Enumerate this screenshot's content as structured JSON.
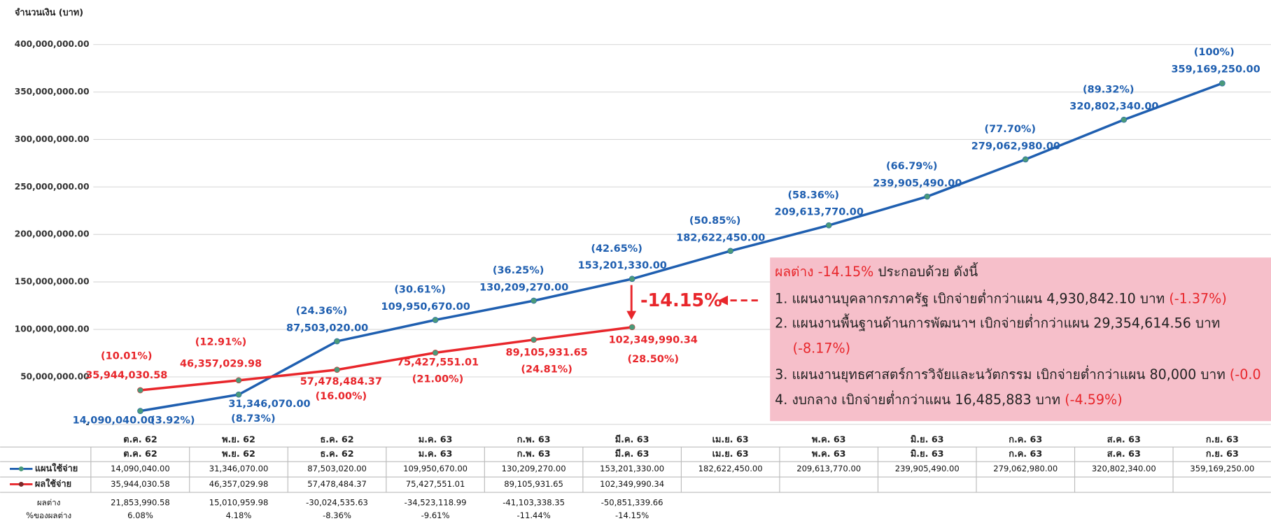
{
  "chart_data": {
    "type": "line",
    "y_axis_label": "จำนวนเงิน (บาท)",
    "categories": [
      "ต.ค. 62",
      "พ.ย. 62",
      "ธ.ค. 62",
      "ม.ค. 63",
      "ก.พ. 63",
      "มี.ค. 63",
      "เม.ย. 63",
      "พ.ค. 63",
      "มิ.ย. 63",
      "ก.ค. 63",
      "ส.ค. 63",
      "ก.ย. 63"
    ],
    "ylim": [
      0,
      400000000
    ],
    "yticks": [
      {
        "value": 0,
        "label": "-"
      },
      {
        "value": 50000000,
        "label": "50,000,000.00"
      },
      {
        "value": 100000000,
        "label": "100,000,000.00"
      },
      {
        "value": 150000000,
        "label": "150,000,000.00"
      },
      {
        "value": 200000000,
        "label": "200,000,000.00"
      },
      {
        "value": 250000000,
        "label": "250,000,000.00"
      },
      {
        "value": 300000000,
        "label": "300,000,000.00"
      },
      {
        "value": 350000000,
        "label": "350,000,000.00"
      },
      {
        "value": 400000000,
        "label": "400,000,000.00"
      }
    ],
    "grid": true,
    "series": [
      {
        "name": "แผนใช้จ่าย",
        "color": "#1f5fb0",
        "values": [
          14090040,
          31346070,
          87503020,
          109950670,
          130209270,
          153201330,
          182622450,
          209613770,
          239905490,
          279062980,
          320802340,
          359169250
        ],
        "value_labels": [
          "14,090,040.00",
          "31,346,070.00",
          "87,503,020.00",
          "109,950,670.00",
          "130,209,270.00",
          "153,201,330.00",
          "182,622,450.00",
          "209,613,770.00",
          "239,905,490.00",
          "279,062,980.00",
          "320,802,340.00",
          "359,169,250.00"
        ],
        "pct_labels": [
          "(3.92%)",
          "(8.73%)",
          "(24.36%)",
          "(30.61%)",
          "(36.25%)",
          "(42.65%)",
          "(50.85%)",
          "(58.36%)",
          "(66.79%)",
          "(77.70%)",
          "(89.32%)",
          "(100%)"
        ]
      },
      {
        "name": "ผลใช้จ่าย",
        "color": "#e8262b",
        "values": [
          35944030.58,
          46357029.98,
          57478484.37,
          75427551.01,
          89105931.65,
          102349990.34,
          null,
          null,
          null,
          null,
          null,
          null
        ],
        "value_labels": [
          "35,944,030.58",
          "46,357,029.98",
          "57,478,484.37",
          "75,427,551.01",
          "89,105,931.65",
          "102,349,990.34",
          null,
          null,
          null,
          null,
          null,
          null
        ],
        "pct_labels": [
          "(10.01%)",
          "(12.91%)",
          "(16.00%)",
          "(21.00%)",
          "(24.81%)",
          "(28.50%)",
          null,
          null,
          null,
          null,
          null,
          null
        ]
      }
    ],
    "difference": {
      "name": "ผลต่าง",
      "labels": [
        "21,853,990.58",
        "15,010,959.98",
        "-30,024,535.63",
        "-34,523,118.99",
        "-41,103,338.35",
        "-50,851,339.66"
      ]
    },
    "difference_pct": {
      "name": "%ของผลต่าง",
      "labels": [
        "6.08%",
        "4.18%",
        "-8.36%",
        "-9.61%",
        "-11.44%",
        "-14.15%"
      ]
    },
    "gap_label": "-14.15%",
    "note": {
      "title_red": "ผลต่าง -14.15%",
      "title_rest": " ประกอบด้วย ดังนี้",
      "items": [
        {
          "text": "1. แผนงานบุคลากรภาครัฐ เบิกจ่ายต่ำกว่าแผน 4,930,842.10 บาท ",
          "pct": "(-1.37%)"
        },
        {
          "text": "2. แผนงานพื้นฐานด้านการพัฒนาฯ เบิกจ่ายต่ำกว่าแผน 29,354,614.56 บาท",
          "pct": "(-8.17%)"
        },
        {
          "text": "3. แผนงานยุทธศาสตร์การวิจัยและนวัตกรรม เบิกจ่ายต่ำกว่าแผน 80,000 บาท ",
          "pct": "(-0.0"
        },
        {
          "text": "4. งบกลาง เบิกจ่ายต่ำกว่าแผน 16,485,883 บาท ",
          "pct": "(-4.59%)"
        }
      ]
    }
  }
}
